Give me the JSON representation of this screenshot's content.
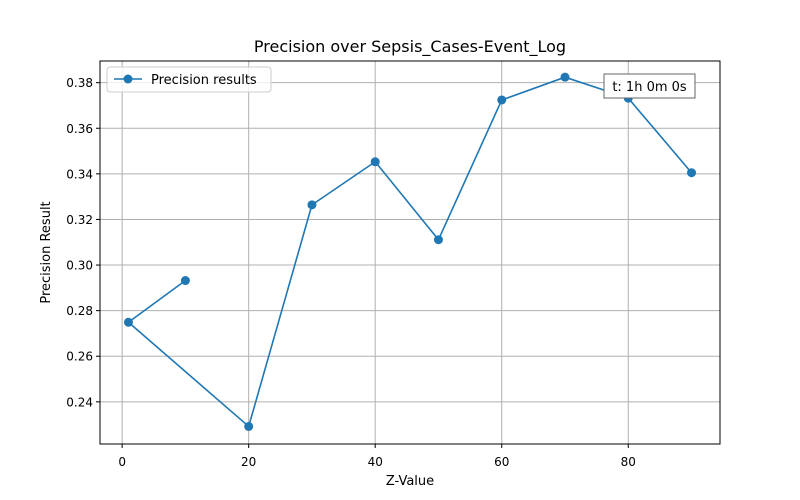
{
  "chart_data": {
    "type": "line",
    "title": "Precision over Sepsis_Cases-Event_Log",
    "xlabel": "Z-Value",
    "ylabel": "Precision Result",
    "xlim": [
      -3.5,
      94.5
    ],
    "ylim": [
      0.2215,
      0.3895
    ],
    "xticks": [
      0,
      20,
      40,
      60,
      80
    ],
    "yticks": [
      0.24,
      0.26,
      0.28,
      0.3,
      0.32,
      0.34,
      0.36,
      0.38
    ],
    "ytick_labels": [
      "0.24",
      "0.26",
      "0.28",
      "0.30",
      "0.32",
      "0.34",
      "0.36",
      "0.38"
    ],
    "grid": true,
    "legend_position": "top-left",
    "series": [
      {
        "name": "Precision results",
        "color": "#1f77b4",
        "marker": "circle",
        "x": [
          10,
          1,
          20,
          30,
          40,
          50,
          60,
          70,
          80,
          90
        ],
        "y": [
          0.2932,
          0.2749,
          0.2292,
          0.3264,
          0.3453,
          0.3111,
          0.3724,
          0.3824,
          0.3732,
          0.3405
        ]
      }
    ],
    "annotation": {
      "text": "t: 1h 0m 0s",
      "position": "top-right"
    }
  }
}
